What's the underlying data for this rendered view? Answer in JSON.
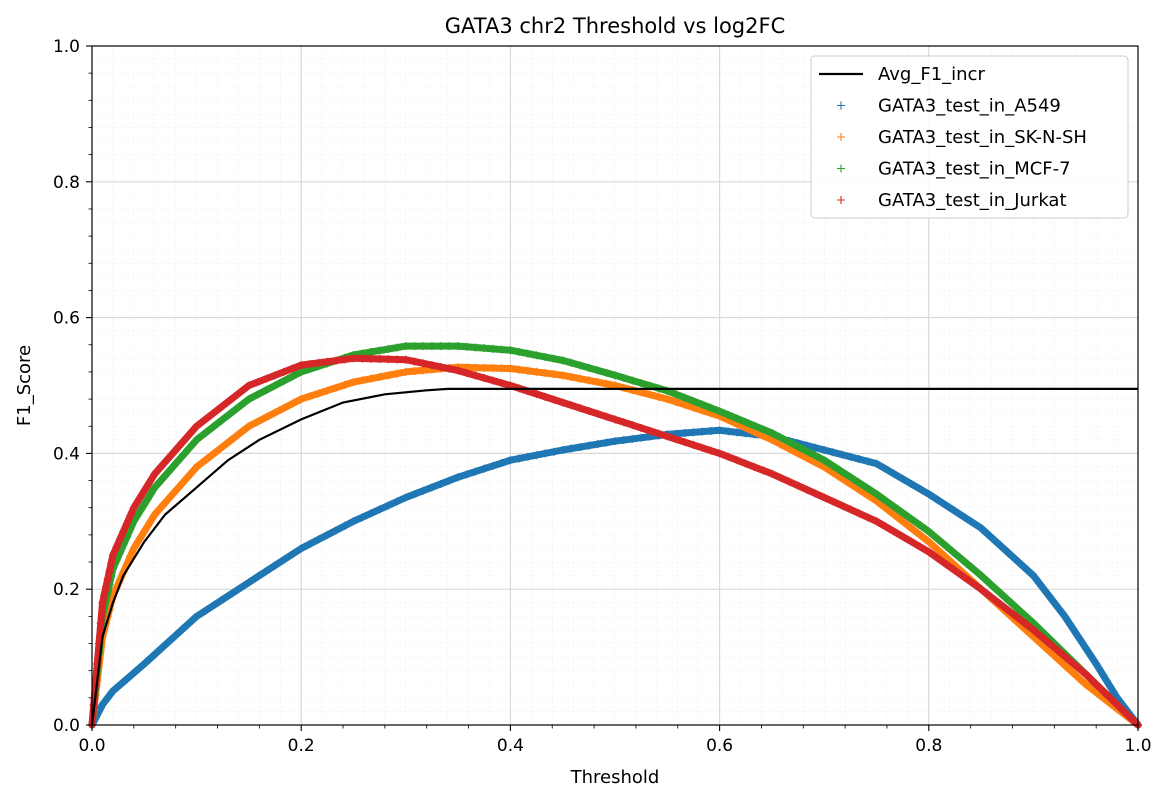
{
  "chart_data": {
    "type": "line",
    "title": "GATA3 chr2 Threshold vs log2FC",
    "xlabel": "Threshold",
    "ylabel": "F1_Score",
    "xlim": [
      0,
      1
    ],
    "ylim": [
      0,
      1
    ],
    "xticks": [
      "0.0",
      "0.2",
      "0.4",
      "0.6",
      "0.8",
      "1.0"
    ],
    "yticks": [
      "0.0",
      "0.2",
      "0.4",
      "0.6",
      "0.8",
      "1.0"
    ],
    "grid": true,
    "minor_grid": true,
    "legend_position": "top-right",
    "line_series": {
      "name": "Avg_F1_incr",
      "color": "#000000",
      "x": [
        0.0,
        0.01,
        0.02,
        0.03,
        0.05,
        0.07,
        0.1,
        0.13,
        0.16,
        0.2,
        0.24,
        0.28,
        0.32,
        0.34,
        0.4,
        0.5,
        0.6,
        0.7,
        0.8,
        0.9,
        1.0
      ],
      "y": [
        0.0,
        0.13,
        0.18,
        0.22,
        0.27,
        0.31,
        0.35,
        0.39,
        0.42,
        0.45,
        0.475,
        0.487,
        0.493,
        0.495,
        0.495,
        0.495,
        0.495,
        0.495,
        0.495,
        0.495,
        0.495
      ]
    },
    "series": [
      {
        "name": "GATA3_test_in_A549",
        "color": "#1f77b4",
        "x": [
          0.0,
          0.01,
          0.02,
          0.05,
          0.1,
          0.15,
          0.2,
          0.25,
          0.3,
          0.35,
          0.4,
          0.45,
          0.5,
          0.55,
          0.6,
          0.65,
          0.7,
          0.75,
          0.8,
          0.85,
          0.9,
          0.93,
          0.96,
          0.98,
          1.0
        ],
        "y": [
          0.0,
          0.03,
          0.05,
          0.09,
          0.16,
          0.21,
          0.26,
          0.3,
          0.335,
          0.365,
          0.39,
          0.405,
          0.418,
          0.428,
          0.434,
          0.425,
          0.405,
          0.385,
          0.34,
          0.29,
          0.22,
          0.16,
          0.09,
          0.04,
          0.0
        ]
      },
      {
        "name": "GATA3_test_in_SK-N-SH",
        "color": "#ff7f0e",
        "x": [
          0.0,
          0.01,
          0.02,
          0.04,
          0.06,
          0.1,
          0.15,
          0.2,
          0.25,
          0.3,
          0.35,
          0.4,
          0.45,
          0.5,
          0.55,
          0.6,
          0.65,
          0.7,
          0.75,
          0.8,
          0.85,
          0.9,
          0.95,
          1.0
        ],
        "y": [
          0.0,
          0.13,
          0.19,
          0.26,
          0.31,
          0.38,
          0.44,
          0.48,
          0.505,
          0.52,
          0.527,
          0.525,
          0.515,
          0.5,
          0.48,
          0.455,
          0.42,
          0.38,
          0.33,
          0.27,
          0.2,
          0.13,
          0.06,
          0.0
        ]
      },
      {
        "name": "GATA3_test_in_MCF-7",
        "color": "#2ca02c",
        "x": [
          0.0,
          0.01,
          0.02,
          0.04,
          0.06,
          0.1,
          0.15,
          0.2,
          0.25,
          0.3,
          0.35,
          0.4,
          0.45,
          0.5,
          0.55,
          0.6,
          0.65,
          0.7,
          0.75,
          0.8,
          0.85,
          0.9,
          0.95,
          1.0
        ],
        "y": [
          0.0,
          0.16,
          0.23,
          0.3,
          0.35,
          0.42,
          0.48,
          0.52,
          0.545,
          0.558,
          0.558,
          0.552,
          0.537,
          0.515,
          0.492,
          0.462,
          0.43,
          0.39,
          0.34,
          0.285,
          0.22,
          0.15,
          0.075,
          0.0
        ]
      },
      {
        "name": "GATA3_test_in_Jurkat",
        "color": "#d62728",
        "x": [
          0.0,
          0.01,
          0.02,
          0.04,
          0.06,
          0.1,
          0.15,
          0.2,
          0.25,
          0.3,
          0.35,
          0.4,
          0.45,
          0.5,
          0.55,
          0.6,
          0.65,
          0.7,
          0.75,
          0.8,
          0.85,
          0.9,
          0.95,
          1.0
        ],
        "y": [
          0.0,
          0.18,
          0.25,
          0.32,
          0.37,
          0.44,
          0.5,
          0.53,
          0.54,
          0.538,
          0.522,
          0.5,
          0.475,
          0.45,
          0.425,
          0.4,
          0.37,
          0.335,
          0.3,
          0.255,
          0.2,
          0.14,
          0.075,
          0.0
        ]
      }
    ]
  }
}
